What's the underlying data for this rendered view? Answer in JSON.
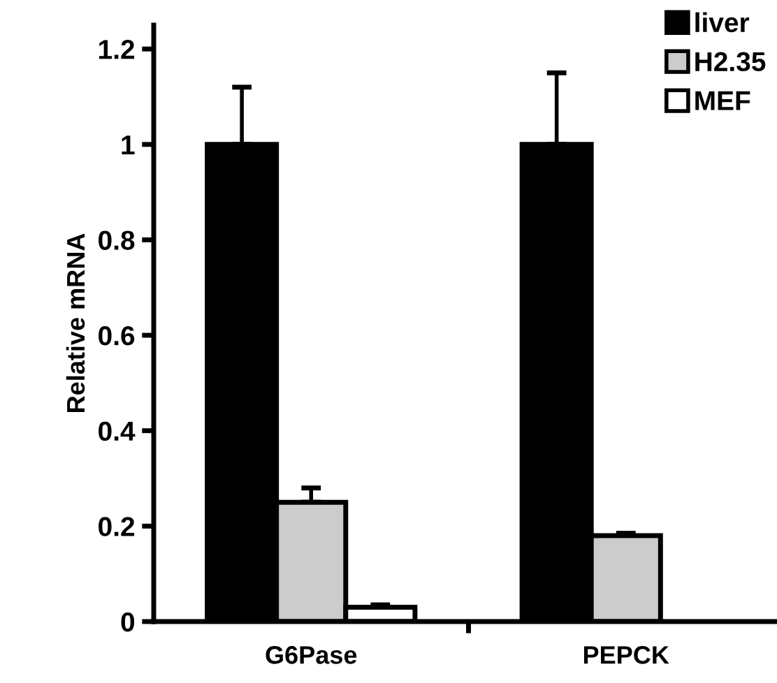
{
  "chart_data": {
    "type": "bar",
    "ylabel": "Relative mRNA",
    "categories": [
      "G6Pase",
      "PEPCK"
    ],
    "series": [
      {
        "name": "liver",
        "color": "#000000",
        "values": [
          1.0,
          1.0
        ],
        "errors": [
          [
            1.0,
            1.12
          ],
          [
            1.0,
            1.15
          ]
        ]
      },
      {
        "name": "H2.35",
        "color": "#cccccc",
        "values": [
          0.25,
          0.18
        ],
        "errors": [
          [
            0.25,
            0.28
          ],
          [
            0.18,
            0.185
          ]
        ]
      },
      {
        "name": "MEF",
        "color": "#ffffff",
        "values": [
          0.03,
          null
        ],
        "errors": [
          [
            0.03,
            0.035
          ],
          null
        ]
      }
    ],
    "ylim": [
      0,
      1.25
    ],
    "yticks": [
      0,
      0.2,
      0.4,
      0.6,
      0.8,
      1,
      1.2
    ],
    "grid": false,
    "legend": "top right"
  }
}
